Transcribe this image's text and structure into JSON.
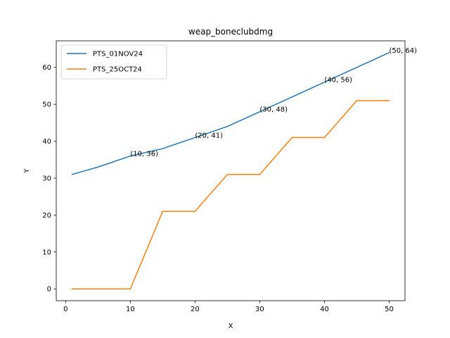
{
  "chart_data": {
    "type": "line",
    "title": "weap_boneclubdmg",
    "xlabel": "X",
    "ylabel": "Y",
    "xlim": [
      -1.45,
      52.45
    ],
    "ylim": [
      -3.2,
      67.2
    ],
    "xticks": [
      0,
      10,
      20,
      30,
      40,
      50
    ],
    "yticks": [
      0,
      10,
      20,
      30,
      40,
      50,
      60
    ],
    "grid": false,
    "legend_position": "top-left",
    "series": [
      {
        "name": "PTS_01NOV24",
        "color": "#1f77b4",
        "x": [
          1,
          5,
          10,
          15,
          20,
          25,
          30,
          35,
          40,
          45,
          50
        ],
        "y": [
          31,
          33,
          36,
          38,
          41,
          44,
          48,
          52,
          56,
          60,
          64
        ]
      },
      {
        "name": "PTS_25OCT24",
        "color": "#ff7f0e",
        "x": [
          1,
          5,
          10,
          15,
          20,
          25,
          30,
          35,
          40,
          45,
          50
        ],
        "y": [
          0,
          0,
          0,
          21,
          21,
          31,
          31,
          41,
          41,
          51,
          51
        ]
      }
    ],
    "annotations": [
      {
        "text": "(10, 36)",
        "x": 10,
        "y": 36
      },
      {
        "text": "(20, 41)",
        "x": 20,
        "y": 41
      },
      {
        "text": "(30, 48)",
        "x": 30,
        "y": 48
      },
      {
        "text": "(40, 56)",
        "x": 40,
        "y": 56
      },
      {
        "text": "(50, 64)",
        "x": 50,
        "y": 64
      }
    ]
  }
}
